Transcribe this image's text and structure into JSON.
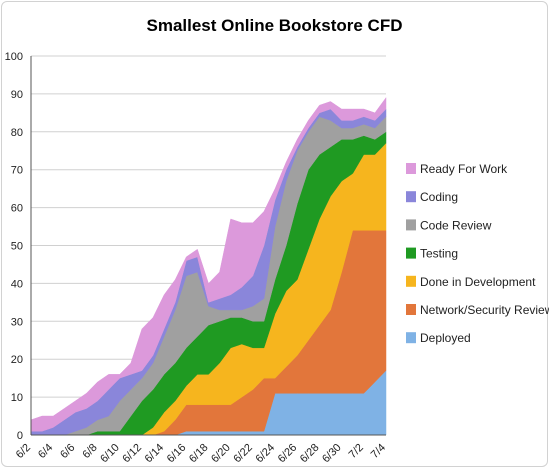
{
  "chart_data": {
    "type": "area",
    "stacked": true,
    "title": "Smallest Online Bookstore CFD",
    "xlabel": "",
    "ylabel": "",
    "ylim": [
      0,
      100
    ],
    "yticks": [
      0,
      10,
      20,
      30,
      40,
      50,
      60,
      70,
      80,
      90,
      100
    ],
    "grid": true,
    "legend_position": "right",
    "x": [
      "6/2",
      "6/3",
      "6/4",
      "6/5",
      "6/6",
      "6/7",
      "6/8",
      "6/9",
      "6/10",
      "6/11",
      "6/12",
      "6/13",
      "6/14",
      "6/15",
      "6/16",
      "6/17",
      "6/18",
      "6/19",
      "6/20",
      "6/21",
      "6/22",
      "6/23",
      "6/24",
      "6/25",
      "6/26",
      "6/27",
      "6/28",
      "6/29",
      "6/30",
      "7/1",
      "7/2",
      "7/3",
      "7/4"
    ],
    "xtick_labels": [
      "6/2",
      "6/4",
      "6/6",
      "6/8",
      "6/10",
      "6/12",
      "6/14",
      "6/16",
      "6/18",
      "6/20",
      "6/22",
      "6/24",
      "6/26",
      "6/28",
      "6/30",
      "7/2",
      "7/4"
    ],
    "series": [
      {
        "name": "Deployed",
        "color": "#7fb2e5",
        "values": [
          0,
          0,
          0,
          0,
          0,
          0,
          0,
          0,
          0,
          0,
          0,
          0,
          0,
          0,
          1,
          1,
          1,
          1,
          1,
          1,
          1,
          1,
          11,
          11,
          11,
          11,
          11,
          11,
          11,
          11,
          11,
          14,
          17
        ]
      },
      {
        "name": "Network/Security Review",
        "color": "#e2763b",
        "values": [
          0,
          0,
          0,
          0,
          0,
          0,
          0,
          0,
          0,
          0,
          0,
          0,
          1,
          4,
          7,
          7,
          7,
          7,
          7,
          9,
          11,
          14,
          4,
          7,
          10,
          14,
          18,
          22,
          32,
          43,
          43,
          40,
          37
        ]
      },
      {
        "name": "Done in Development",
        "color": "#f6b51e",
        "values": [
          0,
          0,
          0,
          0,
          0,
          0,
          0,
          0,
          0,
          0,
          0,
          2,
          5,
          5,
          5,
          8,
          8,
          11,
          15,
          14,
          11,
          8,
          17,
          20,
          20,
          24,
          28,
          30,
          24,
          15,
          20,
          20,
          23
        ]
      },
      {
        "name": "Testing",
        "color": "#1f9a22",
        "values": [
          0,
          0,
          0,
          0,
          0,
          0,
          1,
          1,
          1,
          5,
          9,
          10,
          10,
          10,
          10,
          10,
          13,
          11,
          8,
          7,
          7,
          7,
          9,
          12,
          20,
          21,
          17,
          13,
          11,
          9,
          5,
          4,
          3
        ]
      },
      {
        "name": "Code Review",
        "color": "#a0a0a0",
        "values": [
          0,
          0,
          0,
          0,
          1,
          2,
          3,
          4,
          8,
          7,
          6,
          7,
          10,
          14,
          19,
          17,
          5,
          3,
          2,
          2,
          4,
          6,
          14,
          17,
          14,
          10,
          10,
          7,
          3,
          3,
          3,
          3,
          4
        ]
      },
      {
        "name": "Coding",
        "color": "#8a86da",
        "values": [
          1,
          1,
          2,
          4,
          5,
          5,
          5,
          7,
          6,
          4,
          2,
          2,
          2,
          2,
          4,
          4,
          1,
          3,
          4,
          6,
          8,
          14,
          7,
          3,
          1,
          1,
          1,
          3,
          2,
          2,
          2,
          2,
          2
        ]
      },
      {
        "name": "Ready For Work",
        "color": "#dc99db",
        "values": [
          3,
          4,
          3,
          3,
          3,
          4,
          5,
          4,
          1,
          3,
          11,
          10,
          9,
          6,
          1,
          2,
          5,
          7,
          20,
          17,
          14,
          9,
          3,
          2,
          2,
          2,
          2,
          2,
          3,
          3,
          2,
          2,
          3
        ]
      }
    ]
  }
}
